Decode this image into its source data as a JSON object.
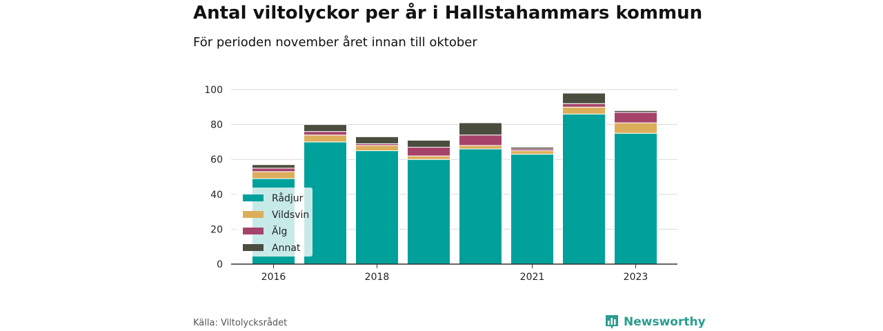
{
  "header": {
    "title": "Antal viltolyckor per år i Hallstahammars kommun",
    "subtitle": "För perioden november året innan till oktober"
  },
  "footer": {
    "source": "Källa: Viltolycksrådet",
    "brand": "Newsworthy",
    "brand_icon": "bar-chart-logo-icon"
  },
  "chart_data": {
    "type": "bar",
    "stacked": true,
    "categories": [
      "2016",
      "2017",
      "2018",
      "2019",
      "2020",
      "2021",
      "2022",
      "2023"
    ],
    "x_tick_labels": [
      "2016",
      "",
      "2018",
      "",
      "",
      "2021",
      "",
      "2023"
    ],
    "series": [
      {
        "name": "Rådjur",
        "color": "#00a19a",
        "values": [
          49,
          70,
          65,
          60,
          66,
          63,
          86,
          75
        ]
      },
      {
        "name": "Vildsvin",
        "color": "#dcae5b",
        "values": [
          4,
          4,
          3,
          2,
          2,
          2,
          4,
          6
        ]
      },
      {
        "name": "Älg",
        "color": "#a6436a",
        "values": [
          2,
          2,
          1,
          5,
          6,
          1,
          2,
          6
        ]
      },
      {
        "name": "Annat",
        "color": "#4b4d3f",
        "values": [
          2,
          4,
          4,
          4,
          7,
          1,
          6,
          1
        ]
      }
    ],
    "ylim": [
      0,
      100
    ],
    "yticks": [
      0,
      20,
      40,
      60,
      80,
      100
    ],
    "grid": true,
    "legend_placement": "bottom-left"
  }
}
